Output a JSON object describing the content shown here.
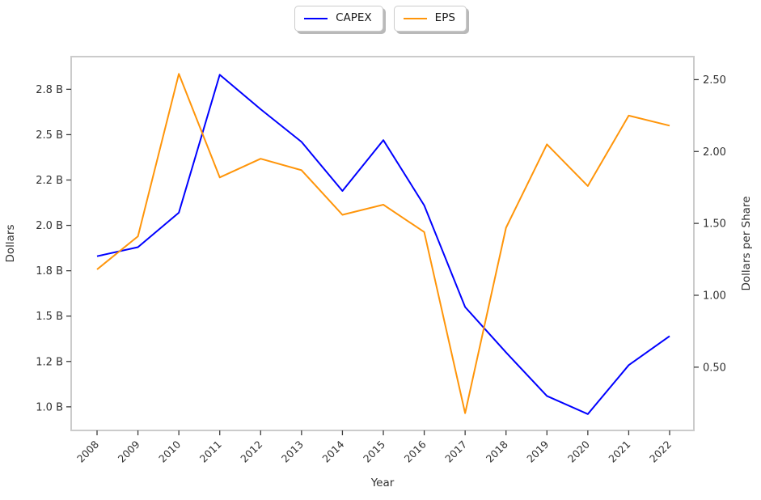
{
  "chart_data": {
    "type": "line",
    "title": "",
    "x": [
      "2008",
      "2009",
      "2010",
      "2011",
      "2012",
      "2013",
      "2014",
      "2015",
      "2016",
      "2017",
      "2018",
      "2019",
      "2020",
      "2021",
      "2022"
    ],
    "xlabel": "Year",
    "legend_position": "upper center, two separate shadowed boxes",
    "grid": false,
    "series": [
      {
        "name": "CAPEX",
        "axis": "left",
        "color": "#0000ff",
        "unit": "billions of dollars",
        "values": [
          1.83,
          1.88,
          2.07,
          2.83,
          2.64,
          2.46,
          2.19,
          2.47,
          2.11,
          1.55,
          1.3,
          1.06,
          0.96,
          1.23,
          1.39
        ]
      },
      {
        "name": "EPS",
        "axis": "right",
        "color": "#ff950a",
        "unit": "dollars per share",
        "values": [
          1.18,
          1.41,
          2.54,
          1.82,
          1.95,
          1.87,
          1.56,
          1.63,
          1.44,
          0.18,
          1.47,
          2.05,
          1.76,
          2.25,
          2.18
        ]
      }
    ],
    "left_axis": {
      "label": "Dollars",
      "range": [
        0.87,
        2.93
      ],
      "ticks": [
        {
          "v": 1.0,
          "label": "1.0 B"
        },
        {
          "v": 1.25,
          "label": "1.2 B"
        },
        {
          "v": 1.5,
          "label": "1.5 B"
        },
        {
          "v": 1.75,
          "label": "1.8 B"
        },
        {
          "v": 2.0,
          "label": "2.0 B"
        },
        {
          "v": 2.25,
          "label": "2.2 B"
        },
        {
          "v": 2.5,
          "label": "2.5 B"
        },
        {
          "v": 2.75,
          "label": "2.8 B"
        }
      ]
    },
    "right_axis": {
      "label": "Dollars per Share",
      "range": [
        0.06,
        2.66
      ],
      "ticks": [
        {
          "v": 0.5,
          "label": "0.50"
        },
        {
          "v": 1.0,
          "label": "1.00"
        },
        {
          "v": 1.5,
          "label": "1.50"
        },
        {
          "v": 2.0,
          "label": "2.00"
        },
        {
          "v": 2.5,
          "label": "2.50"
        }
      ]
    },
    "colors": {
      "spine": "#cbcbcb",
      "tick_mark": "#3c3c3c",
      "text": "#313131",
      "legend_border": "#cccccc",
      "legend_shadow": "#b9b9b9",
      "background": "#ffffff"
    }
  }
}
